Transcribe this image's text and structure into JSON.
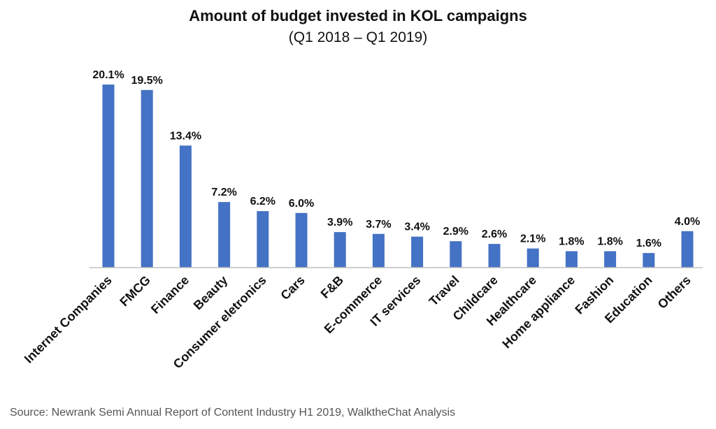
{
  "chart_data": {
    "type": "bar",
    "title": "Amount of budget invested in KOL campaigns",
    "subtitle": "(Q1 2018 – Q1 2019)",
    "categories": [
      "Internet Companies",
      "FMCG",
      "Finance",
      "Beauty",
      "Consumer eletronics",
      "Cars",
      "F&B",
      "E-commerce",
      "IT services",
      "Travel",
      "Childcare",
      "Healthcare",
      "Home appliance",
      "Fashion",
      "Education",
      "Others"
    ],
    "values": [
      20.1,
      19.5,
      13.4,
      7.2,
      6.2,
      6.0,
      3.9,
      3.7,
      3.4,
      2.9,
      2.6,
      2.1,
      1.8,
      1.8,
      1.6,
      4.0
    ],
    "value_labels": [
      "20.1%",
      "19.5%",
      "13.4%",
      "7.2%",
      "6.2%",
      "6.0%",
      "3.9%",
      "3.7%",
      "3.4%",
      "2.9%",
      "2.6%",
      "2.1%",
      "1.8%",
      "1.8%",
      "1.6%",
      "4.0%"
    ],
    "xlabel": "",
    "ylabel": "",
    "ylim": [
      0,
      20.1
    ],
    "grid": false,
    "legend": "none",
    "bar_color": "#4472C4"
  },
  "footer": {
    "source": "Source: Newrank Semi Annual Report of Content Industry H1 2019, WalktheChat Analysis"
  }
}
